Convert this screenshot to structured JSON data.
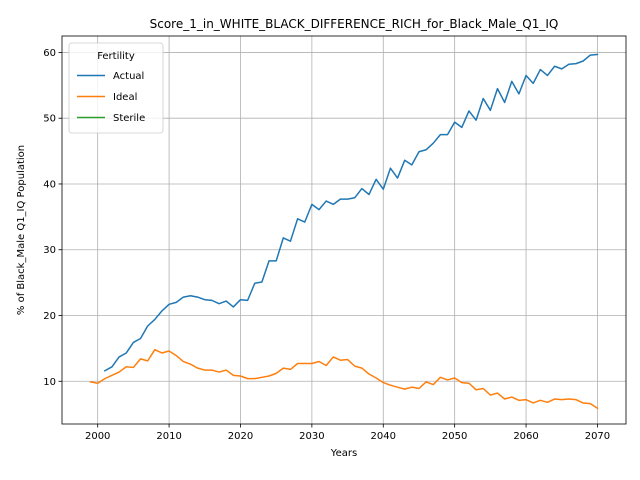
{
  "chart_data": {
    "type": "line",
    "title": "Score_1_in_WHITE_BLACK_DIFFERENCE_RICH_for_Black_Male_Q1_IQ",
    "xlabel": "Years",
    "ylabel": "% of Black_Male Q1_IQ Population",
    "xlim": [
      1995,
      2074
    ],
    "ylim": [
      3.5,
      62.5
    ],
    "xticks": [
      2000,
      2010,
      2020,
      2030,
      2040,
      2050,
      2060,
      2070
    ],
    "yticks": [
      10,
      20,
      30,
      40,
      50,
      60
    ],
    "grid": true,
    "legend": {
      "title": "Fertility",
      "placement": "top-left"
    },
    "series": [
      {
        "name": "Actual",
        "color": "#1f77b4",
        "x": [
          2001,
          2002,
          2003,
          2004,
          2005,
          2006,
          2007,
          2008,
          2009,
          2010,
          2011,
          2012,
          2013,
          2014,
          2015,
          2016,
          2017,
          2018,
          2019,
          2020,
          2021,
          2022,
          2023,
          2024,
          2025,
          2026,
          2027,
          2028,
          2029,
          2030,
          2031,
          2032,
          2033,
          2034,
          2035,
          2036,
          2037,
          2038,
          2039,
          2040,
          2041,
          2042,
          2043,
          2044,
          2045,
          2046,
          2047,
          2048,
          2049,
          2050,
          2051,
          2052,
          2053,
          2054,
          2055,
          2056,
          2057,
          2058,
          2059,
          2060,
          2061,
          2062,
          2063,
          2064,
          2065,
          2066,
          2067,
          2068,
          2069,
          2070
        ],
        "values": [
          11.6,
          12.2,
          13.7,
          14.3,
          15.9,
          16.5,
          18.4,
          19.4,
          20.7,
          21.7,
          22.0,
          22.8,
          23.0,
          22.8,
          22.4,
          22.3,
          21.8,
          22.2,
          21.3,
          22.4,
          22.3,
          24.9,
          25.1,
          28.3,
          28.3,
          31.8,
          31.3,
          34.7,
          34.2,
          36.9,
          36.1,
          37.4,
          36.9,
          37.7,
          37.7,
          37.9,
          39.3,
          38.4,
          40.7,
          39.2,
          42.4,
          40.9,
          43.6,
          42.9,
          44.9,
          45.2,
          46.2,
          47.5,
          47.5,
          49.4,
          48.6,
          51.1,
          49.7,
          53.0,
          51.2,
          54.5,
          52.4,
          55.6,
          53.7,
          56.5,
          55.3,
          57.4,
          56.5,
          57.9,
          57.5,
          58.2,
          58.3,
          58.7,
          59.6,
          59.7
        ]
      },
      {
        "name": "Ideal",
        "color": "#ff7f0e",
        "x": [
          1999,
          2000,
          2001,
          2002,
          2003,
          2004,
          2005,
          2006,
          2007,
          2008,
          2009,
          2010,
          2011,
          2012,
          2013,
          2014,
          2015,
          2016,
          2017,
          2018,
          2019,
          2020,
          2021,
          2022,
          2023,
          2024,
          2025,
          2026,
          2027,
          2028,
          2029,
          2030,
          2031,
          2032,
          2033,
          2034,
          2035,
          2036,
          2037,
          2038,
          2039,
          2040,
          2041,
          2042,
          2043,
          2044,
          2045,
          2046,
          2047,
          2048,
          2049,
          2050,
          2051,
          2052,
          2053,
          2054,
          2055,
          2056,
          2057,
          2058,
          2059,
          2060,
          2061,
          2062,
          2063,
          2064,
          2065,
          2066,
          2067,
          2068,
          2069,
          2070
        ],
        "values": [
          9.9,
          9.7,
          10.4,
          10.9,
          11.4,
          12.2,
          12.1,
          13.4,
          13.1,
          14.8,
          14.3,
          14.6,
          13.9,
          13.0,
          12.6,
          12.0,
          11.7,
          11.7,
          11.4,
          11.7,
          10.9,
          10.8,
          10.4,
          10.4,
          10.6,
          10.8,
          11.2,
          12.0,
          11.8,
          12.7,
          12.7,
          12.7,
          13.0,
          12.4,
          13.7,
          13.2,
          13.3,
          12.3,
          12.0,
          11.1,
          10.5,
          9.8,
          9.4,
          9.1,
          8.8,
          9.1,
          8.9,
          9.9,
          9.5,
          10.6,
          10.2,
          10.5,
          9.8,
          9.7,
          8.7,
          8.9,
          7.9,
          8.2,
          7.3,
          7.6,
          7.1,
          7.2,
          6.7,
          7.1,
          6.8,
          7.3,
          7.2,
          7.3,
          7.2,
          6.7,
          6.6,
          5.9
        ]
      },
      {
        "name": "Sterile",
        "color": "#2ca02c",
        "x": [],
        "values": []
      }
    ]
  }
}
